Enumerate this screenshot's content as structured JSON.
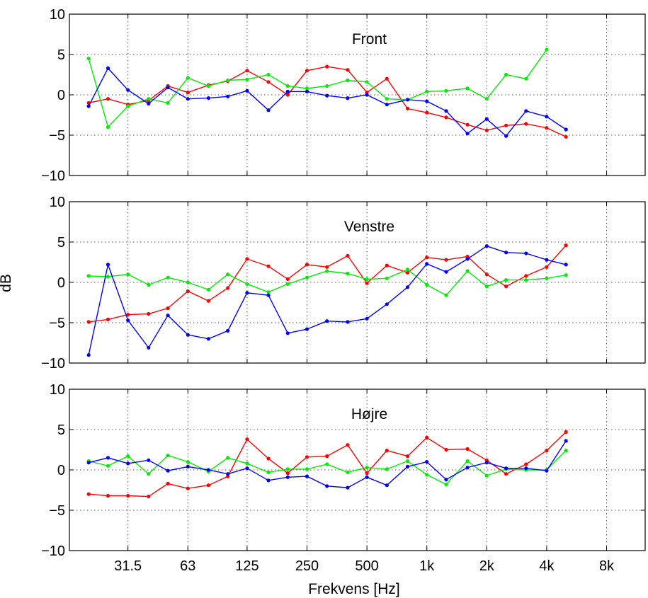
{
  "chart_data": [
    {
      "type": "line",
      "title": "Front",
      "ylabel": "",
      "xlabel": "",
      "x_scale": "log",
      "grid": true,
      "xlim": [
        16,
        12500
      ],
      "ylim": [
        -10,
        10
      ],
      "yticks": [
        10,
        5,
        0,
        -5,
        -10
      ],
      "x_ticks": [
        31.5,
        63,
        125,
        250,
        500,
        1000,
        2000,
        4000,
        8000
      ],
      "x_tick_labels": [
        "31.5",
        "63",
        "125",
        "250",
        "500",
        "1k",
        "2k",
        "4k",
        "8k"
      ],
      "x": [
        20,
        25,
        31.5,
        40,
        50,
        63,
        80,
        100,
        125,
        160,
        200,
        250,
        315,
        400,
        500,
        630,
        800,
        1000,
        1250,
        1600,
        2000,
        2500,
        3150,
        4000,
        5000
      ],
      "series": [
        {
          "color": "#ff0000",
          "values": [
            -1.0,
            -0.5,
            -1.2,
            -0.7,
            1.1,
            0.3,
            1.2,
            1.7,
            3.0,
            1.6,
            0.0,
            3.0,
            3.5,
            3.1,
            0.3,
            2.0,
            -1.7,
            -2.2,
            -2.8,
            -3.7,
            -4.4,
            -3.8,
            -3.6,
            -4.1,
            -5.2
          ]
        },
        {
          "color": "#00ee00",
          "values": [
            4.5,
            -4.0,
            -1.4,
            -0.5,
            -1.0,
            2.1,
            1.1,
            1.8,
            1.9,
            2.5,
            1.1,
            0.8,
            1.1,
            1.8,
            1.6,
            -0.5,
            -0.6,
            0.4,
            0.5,
            0.8,
            -0.5,
            2.5,
            2.0,
            5.6,
            null
          ]
        },
        {
          "color": "#0000ff",
          "values": [
            -1.4,
            3.3,
            0.6,
            -1.1,
            0.9,
            -0.5,
            -0.4,
            -0.2,
            0.5,
            -1.9,
            0.4,
            0.4,
            -0.1,
            -0.4,
            0.0,
            -1.2,
            -0.6,
            -0.8,
            -2.0,
            -4.8,
            -3.0,
            -5.1,
            -2.0,
            -2.7,
            -4.3
          ]
        }
      ]
    },
    {
      "type": "line",
      "title": "Venstre",
      "ylabel": "dB",
      "xlabel": "",
      "x_scale": "log",
      "grid": true,
      "xlim": [
        16,
        12500
      ],
      "ylim": [
        -10,
        10
      ],
      "yticks": [
        10,
        5,
        0,
        -5,
        -10
      ],
      "x_ticks": [
        31.5,
        63,
        125,
        250,
        500,
        1000,
        2000,
        4000,
        8000
      ],
      "x_tick_labels": [
        "31.5",
        "63",
        "125",
        "250",
        "500",
        "1k",
        "2k",
        "4k",
        "8k"
      ],
      "x": [
        20,
        25,
        31.5,
        40,
        50,
        63,
        80,
        100,
        125,
        160,
        200,
        250,
        315,
        400,
        500,
        630,
        800,
        1000,
        1250,
        1600,
        2000,
        2500,
        3150,
        4000,
        5000
      ],
      "series": [
        {
          "color": "#ff0000",
          "values": [
            -4.9,
            -4.6,
            -4.0,
            -3.9,
            -3.2,
            -1.1,
            -2.3,
            -0.7,
            2.9,
            2.0,
            0.4,
            2.2,
            1.9,
            3.3,
            -0.1,
            2.1,
            1.2,
            3.1,
            2.8,
            3.2,
            1.0,
            -0.5,
            0.8,
            1.9,
            4.6
          ]
        },
        {
          "color": "#00ee00",
          "values": [
            0.8,
            0.7,
            1.0,
            -0.3,
            0.6,
            0.0,
            -0.9,
            1.0,
            -0.2,
            -1.2,
            -0.2,
            0.6,
            1.4,
            1.1,
            0.4,
            0.5,
            1.6,
            -0.3,
            -1.6,
            1.4,
            -0.5,
            0.3,
            0.3,
            0.5,
            0.9
          ]
        },
        {
          "color": "#0000ff",
          "values": [
            -9.0,
            2.2,
            -4.7,
            -8.1,
            -4.1,
            -6.5,
            -7.0,
            -6.0,
            -1.3,
            -1.6,
            -6.3,
            -5.8,
            -4.8,
            -4.9,
            -4.5,
            -2.7,
            -0.6,
            2.3,
            1.3,
            2.9,
            4.5,
            3.7,
            3.6,
            2.8,
            2.2
          ]
        }
      ]
    },
    {
      "type": "line",
      "title": "Højre",
      "ylabel": "",
      "xlabel": "Frekvens [Hz]",
      "x_scale": "log",
      "grid": true,
      "xlim": [
        16,
        12500
      ],
      "ylim": [
        -10,
        10
      ],
      "yticks": [
        10,
        5,
        0,
        -5,
        -10
      ],
      "x_ticks": [
        31.5,
        63,
        125,
        250,
        500,
        1000,
        2000,
        4000,
        8000
      ],
      "x_tick_labels": [
        "31.5",
        "63",
        "125",
        "250",
        "500",
        "1k",
        "2k",
        "4k",
        "8k"
      ],
      "x": [
        20,
        25,
        31.5,
        40,
        50,
        63,
        80,
        100,
        125,
        160,
        200,
        250,
        315,
        400,
        500,
        630,
        800,
        1000,
        1250,
        1600,
        2000,
        2500,
        3150,
        4000,
        5000
      ],
      "series": [
        {
          "color": "#ff0000",
          "values": [
            -3.0,
            -3.2,
            -3.2,
            -3.3,
            -1.7,
            -2.3,
            -1.9,
            -0.8,
            3.8,
            1.4,
            -0.4,
            1.6,
            1.7,
            3.1,
            -0.4,
            2.4,
            1.7,
            4.0,
            2.5,
            2.6,
            1.2,
            -0.5,
            0.7,
            2.4,
            4.7
          ]
        },
        {
          "color": "#00ee00",
          "values": [
            1.1,
            0.5,
            1.7,
            -0.5,
            1.8,
            1.0,
            -0.2,
            1.5,
            0.8,
            -0.3,
            0.1,
            0.1,
            0.7,
            -0.3,
            0.3,
            0.1,
            1.1,
            -0.6,
            -1.8,
            1.1,
            -0.7,
            0.1,
            0.0,
            0.0,
            2.4
          ]
        },
        {
          "color": "#0000ff",
          "values": [
            0.9,
            1.5,
            0.8,
            1.2,
            -0.1,
            0.4,
            0.0,
            -0.5,
            0.2,
            -1.3,
            -0.9,
            -0.8,
            -2.0,
            -2.2,
            -0.9,
            -1.9,
            0.4,
            1.0,
            -1.2,
            0.3,
            0.9,
            0.2,
            0.2,
            -0.1,
            3.6
          ]
        }
      ]
    }
  ]
}
